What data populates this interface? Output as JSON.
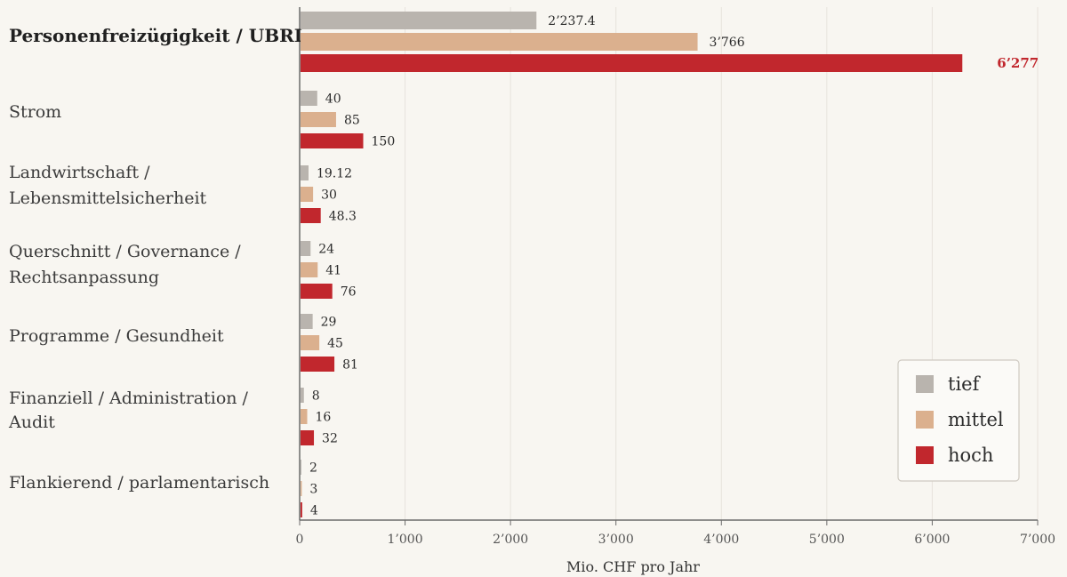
{
  "chart_data": {
    "type": "bar",
    "orientation": "horizontal",
    "categories": [
      "Personenfreizügigkeit / UBRL",
      "Strom",
      "Landwirtschaft /\nLebensmittelsicherheit",
      "Querschnitt / Governance /\nRechtsanpassung",
      "Programme / Gesundheit",
      "Finanziell / Administration /\nAudit",
      "Flankierend / parlamentarisch"
    ],
    "series": [
      {
        "name": "tief",
        "color": "#b9b4ae",
        "values": [
          2237.4,
          40,
          19.12,
          24,
          29,
          8,
          2
        ],
        "labels": [
          "2’237.4",
          "40",
          "19.12",
          "24",
          "29",
          "8",
          "2"
        ]
      },
      {
        "name": "mittel",
        "color": "#dbb08e",
        "values": [
          3766,
          85,
          30,
          41,
          45,
          16,
          3
        ],
        "labels": [
          "3’766",
          "85",
          "30",
          "41",
          "45",
          "16",
          "3"
        ]
      },
      {
        "name": "hoch",
        "color": "#c1272d",
        "values": [
          6277,
          150,
          48.3,
          76,
          81,
          32,
          4
        ],
        "labels": [
          "6’277",
          "150",
          "48.3",
          "76",
          "81",
          "32",
          "4"
        ]
      }
    ],
    "highlight_label_color": "#c1272d",
    "xlabel": "Mio. CHF pro Jahr",
    "xlim": [
      0,
      7000
    ],
    "xticks": [
      0,
      1000,
      2000,
      3000,
      4000,
      5000,
      6000,
      7000
    ],
    "xtick_labels": [
      "0",
      "1’000",
      "2’000",
      "3’000",
      "4’000",
      "5’000",
      "6’000",
      "7’000"
    ],
    "grid": true,
    "legend_position": "bottom-right",
    "note": "Kategorie-Achse mit gebrochener Skala: erste Kategorie 0–7000, übrige 0–1000 auf gleicher Breite"
  }
}
